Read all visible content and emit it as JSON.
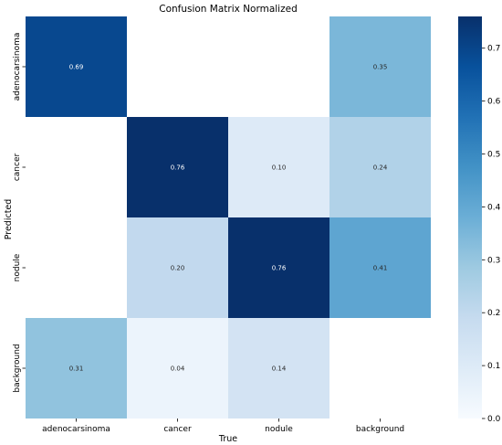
{
  "chart_data": {
    "type": "heatmap",
    "title": "Confusion Matrix Normalized",
    "xlabel": "True",
    "ylabel": "Predicted",
    "x_categories": [
      "adenocarsinoma",
      "cancer",
      "nodule",
      "background"
    ],
    "y_categories": [
      "adenocarsinoma",
      "cancer",
      "nodule",
      "background"
    ],
    "values": [
      [
        0.69,
        null,
        null,
        0.35
      ],
      [
        null,
        0.76,
        0.1,
        0.24
      ],
      [
        null,
        0.2,
        0.76,
        0.41
      ],
      [
        0.31,
        0.04,
        0.14,
        null
      ]
    ],
    "value_labels": [
      [
        "0.69",
        "",
        "",
        "0.35"
      ],
      [
        "",
        "0.76",
        "0.10",
        "0.24"
      ],
      [
        "",
        "0.20",
        "0.76",
        "0.41"
      ],
      [
        "0.31",
        "0.04",
        "0.14",
        ""
      ]
    ],
    "colormap": "Blues",
    "colorbar": {
      "vmin": 0.0,
      "vmax": 0.76,
      "ticks": [
        0.0,
        0.1,
        0.2,
        0.3,
        0.4,
        0.5,
        0.6,
        0.7
      ],
      "tick_labels": [
        "0.0",
        "0.1",
        "0.2",
        "0.3",
        "0.4",
        "0.5",
        "0.6",
        "0.7"
      ]
    },
    "grid": false
  }
}
